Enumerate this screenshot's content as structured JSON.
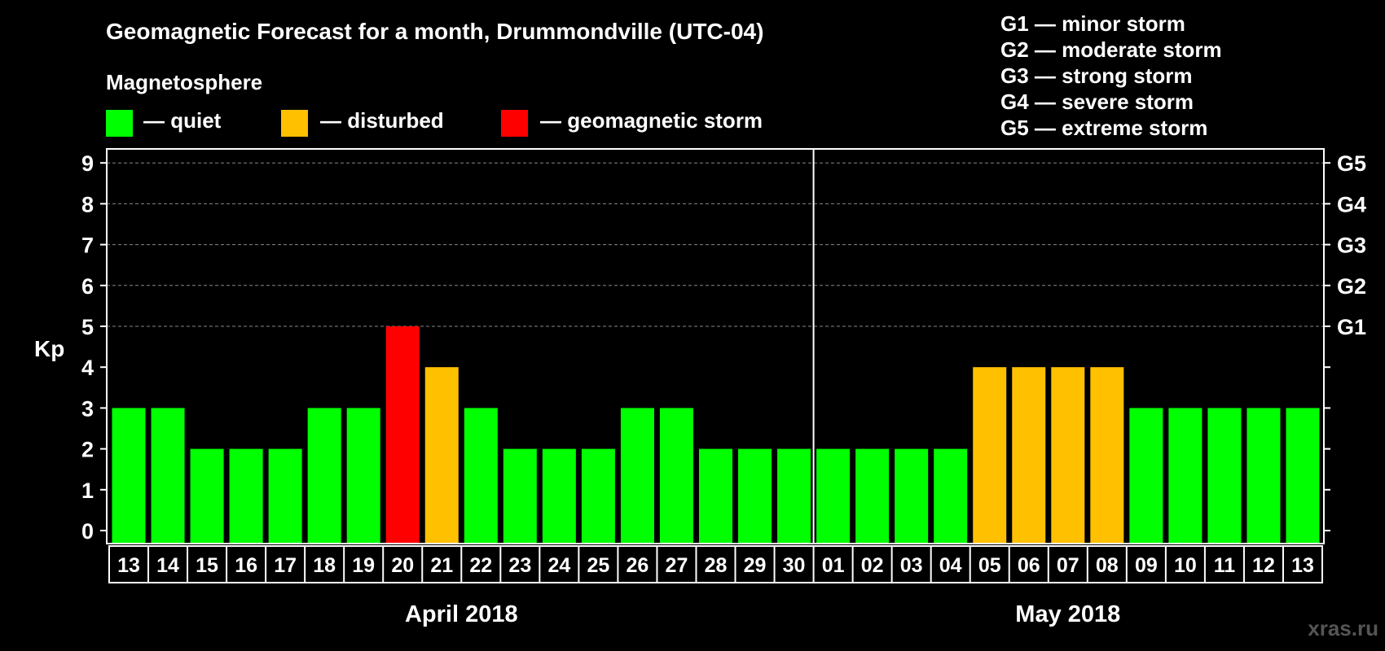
{
  "title": "Geomagnetic Forecast for a month, Drummondville (UTC-04)",
  "legend": {
    "heading": "Magnetosphere",
    "items": [
      {
        "label": "— quiet",
        "color": "#00ff00"
      },
      {
        "label": "— disturbed",
        "color": "#ffc000"
      },
      {
        "label": "— geomagnetic storm",
        "color": "#ff0000"
      }
    ]
  },
  "storm_scale": [
    {
      "level": "G1",
      "label": "G1 — minor storm"
    },
    {
      "level": "G2",
      "label": "G2 — moderate storm"
    },
    {
      "level": "G3",
      "label": "G3 — strong storm"
    },
    {
      "level": "G4",
      "label": "G4 — severe storm"
    },
    {
      "level": "G5",
      "label": "G5 — extreme storm"
    }
  ],
  "watermark": "xras.ru",
  "chart_data": {
    "type": "bar",
    "ylabel": "Kp",
    "ylim": [
      0,
      9
    ],
    "yticks": [
      "0",
      "1",
      "2",
      "3",
      "4",
      "5",
      "6",
      "7",
      "8",
      "9"
    ],
    "right_axis": [
      {
        "value": 5,
        "label": "G1"
      },
      {
        "value": 6,
        "label": "G2"
      },
      {
        "value": 7,
        "label": "G3"
      },
      {
        "value": 8,
        "label": "G4"
      },
      {
        "value": 9,
        "label": "G5"
      }
    ],
    "grid": "dashed horizontal lines at 5-9",
    "categories": [
      "13",
      "14",
      "15",
      "16",
      "17",
      "18",
      "19",
      "20",
      "21",
      "22",
      "23",
      "24",
      "25",
      "26",
      "27",
      "28",
      "29",
      "30",
      "01",
      "02",
      "03",
      "04",
      "05",
      "06",
      "07",
      "08",
      "09",
      "10",
      "11",
      "12",
      "13"
    ],
    "values": [
      3,
      3,
      2,
      2,
      2,
      3,
      3,
      5,
      4,
      3,
      2,
      2,
      2,
      3,
      3,
      2,
      2,
      2,
      2,
      2,
      2,
      2,
      4,
      4,
      4,
      4,
      3,
      3,
      3,
      3,
      3
    ],
    "status": [
      "quiet",
      "quiet",
      "quiet",
      "quiet",
      "quiet",
      "quiet",
      "quiet",
      "storm",
      "disturbed",
      "quiet",
      "quiet",
      "quiet",
      "quiet",
      "quiet",
      "quiet",
      "quiet",
      "quiet",
      "quiet",
      "quiet",
      "quiet",
      "quiet",
      "quiet",
      "disturbed",
      "disturbed",
      "disturbed",
      "disturbed",
      "quiet",
      "quiet",
      "quiet",
      "quiet",
      "quiet"
    ],
    "colors": {
      "quiet": "#00ff00",
      "disturbed": "#ffc000",
      "storm": "#ff0000"
    },
    "months": [
      {
        "label": "April 2018",
        "start_index": 0,
        "end_index": 17
      },
      {
        "label": "May 2018",
        "start_index": 18,
        "end_index": 30
      }
    ]
  }
}
